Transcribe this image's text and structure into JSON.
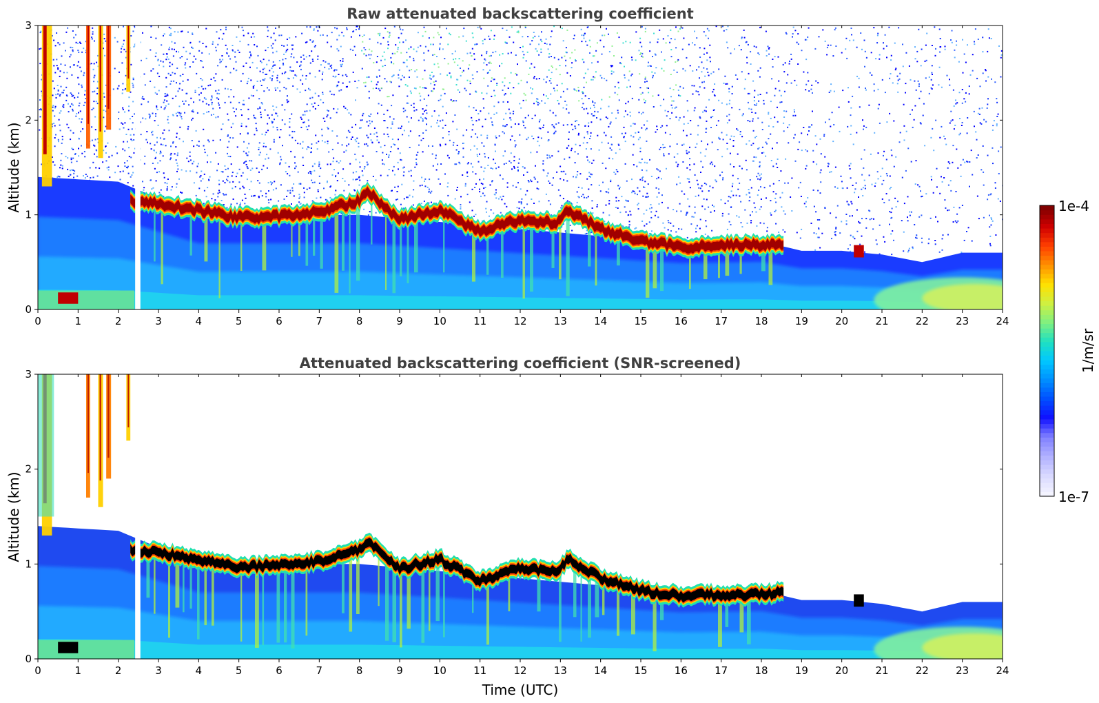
{
  "chart_data": [
    {
      "type": "heatmap",
      "title": "Raw attenuated backscattering coefficient",
      "ylabel": "Altitude (km)",
      "xlabel": "",
      "x_ticks": [
        "0",
        "1",
        "2",
        "3",
        "4",
        "5",
        "6",
        "7",
        "8",
        "9",
        "10",
        "11",
        "12",
        "13",
        "14",
        "15",
        "16",
        "17",
        "18",
        "19",
        "20",
        "21",
        "22",
        "23",
        "24"
      ],
      "y_ticks": [
        "0",
        "1",
        "2",
        "3"
      ],
      "xlim": [
        0,
        24
      ],
      "ylim": [
        0,
        3
      ],
      "gap_hours": [
        2.42,
        2.55
      ],
      "cloud_layer": {
        "hours": [
          2.3,
          3,
          4,
          5,
          6,
          7,
          8,
          8.2,
          9,
          10,
          11,
          12,
          12.9,
          13.2,
          14,
          15,
          16,
          17,
          18,
          18.5
        ],
        "altitude_km": [
          1.15,
          1.12,
          1.05,
          0.97,
          0.98,
          1.03,
          1.15,
          1.25,
          0.95,
          1.05,
          0.82,
          0.95,
          0.92,
          1.05,
          0.85,
          0.72,
          0.66,
          0.68,
          0.68,
          0.7
        ]
      },
      "boundary_layer_top": {
        "hours": [
          0,
          2,
          4,
          8,
          12,
          16,
          18,
          19,
          20,
          21,
          22,
          23,
          24
        ],
        "altitude_km": [
          1.4,
          1.35,
          1.0,
          1.0,
          0.85,
          0.7,
          0.72,
          0.62,
          0.62,
          0.58,
          0.5,
          0.6,
          0.6
        ]
      },
      "noise_above_layer": true
    },
    {
      "type": "heatmap",
      "title": "Attenuated backscattering coefficient (SNR-screened)",
      "ylabel": "Altitude (km)",
      "xlabel": "Time (UTC)",
      "x_ticks": [
        "0",
        "1",
        "2",
        "3",
        "4",
        "5",
        "6",
        "7",
        "8",
        "9",
        "10",
        "11",
        "12",
        "13",
        "14",
        "15",
        "16",
        "17",
        "18",
        "19",
        "20",
        "21",
        "22",
        "23",
        "24"
      ],
      "y_ticks": [
        "0",
        "1",
        "2",
        "3"
      ],
      "xlim": [
        0,
        24
      ],
      "ylim": [
        0,
        3
      ],
      "gap_hours": [
        2.42,
        2.55
      ],
      "saturated_cloud_color": "#000000",
      "noise_above_layer": false
    }
  ],
  "colorbar": {
    "label": "1/m/sr",
    "max_label": "1e-4",
    "min_label": "1e-7",
    "colors": [
      "#f4f4ff",
      "#d8d8ff",
      "#b0b0ff",
      "#8080ff",
      "#1010ff",
      "#0050ff",
      "#0090ff",
      "#00c8ff",
      "#20e0c0",
      "#80f080",
      "#d0f040",
      "#ffe000",
      "#ff9000",
      "#ff4000",
      "#d00000",
      "#800000"
    ]
  }
}
